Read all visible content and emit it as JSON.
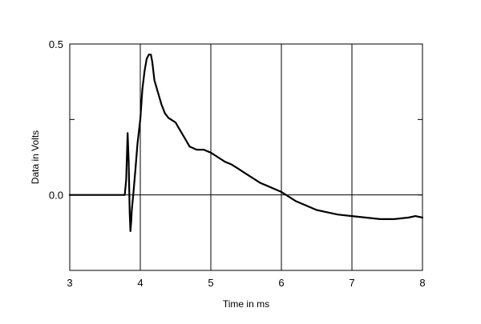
{
  "chart_data": {
    "type": "line",
    "title": "",
    "xlabel": "Time in ms",
    "ylabel": "Data in Volts",
    "xlim": [
      3,
      8
    ],
    "ylim": [
      -0.25,
      0.5
    ],
    "x_ticks": [
      3,
      4,
      5,
      6,
      7,
      8
    ],
    "x_tick_labels": [
      "3",
      "4",
      "5",
      "6",
      "7",
      "8"
    ],
    "y_labeled_ticks": [
      0.0,
      0.5
    ],
    "y_tick_labels": [
      "0.0",
      "0.5"
    ],
    "y_minor_ticks": [
      0.25,
      -0.25
    ],
    "grid": {
      "vertical_at": [
        4,
        5,
        6,
        7
      ],
      "horizontal_at": [
        0.0
      ]
    },
    "colors": {
      "line": "#000000",
      "grid": "#000000",
      "background": "#ffffff"
    },
    "series": [
      {
        "x": [
          3.0,
          3.5,
          3.78,
          3.8,
          3.82,
          3.835,
          3.85,
          3.86,
          3.87,
          3.88,
          3.9,
          3.93,
          3.96,
          4.0,
          4.03,
          4.06,
          4.09,
          4.12,
          4.15,
          4.17,
          4.2,
          4.25,
          4.3,
          4.35,
          4.4,
          4.5,
          4.55,
          4.6,
          4.65,
          4.7,
          4.8,
          4.9,
          5.0,
          5.1,
          5.2,
          5.3,
          5.4,
          5.5,
          5.6,
          5.7,
          5.8,
          5.9,
          6.0,
          6.1,
          6.2,
          6.3,
          6.4,
          6.5,
          6.6,
          6.7,
          6.8,
          7.0,
          7.2,
          7.4,
          7.6,
          7.8,
          7.9,
          8.0
        ],
        "y": [
          0.0,
          0.0,
          0.0,
          0.05,
          0.205,
          0.11,
          -0.06,
          -0.12,
          -0.09,
          -0.05,
          0.0,
          0.08,
          0.17,
          0.25,
          0.35,
          0.41,
          0.45,
          0.465,
          0.465,
          0.44,
          0.38,
          0.34,
          0.3,
          0.27,
          0.255,
          0.24,
          0.22,
          0.2,
          0.18,
          0.16,
          0.15,
          0.15,
          0.14,
          0.125,
          0.11,
          0.1,
          0.085,
          0.07,
          0.055,
          0.04,
          0.03,
          0.02,
          0.01,
          -0.005,
          -0.02,
          -0.03,
          -0.04,
          -0.05,
          -0.055,
          -0.06,
          -0.065,
          -0.07,
          -0.075,
          -0.08,
          -0.08,
          -0.075,
          -0.07,
          -0.075
        ]
      }
    ]
  }
}
